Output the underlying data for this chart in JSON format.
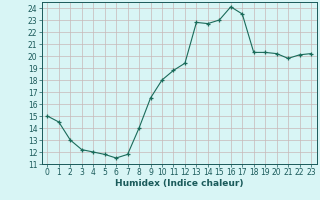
{
  "x": [
    0,
    1,
    2,
    3,
    4,
    5,
    6,
    7,
    8,
    9,
    10,
    11,
    12,
    13,
    14,
    15,
    16,
    17,
    18,
    19,
    20,
    21,
    22,
    23
  ],
  "y": [
    15.0,
    14.5,
    13.0,
    12.2,
    12.0,
    11.8,
    11.5,
    11.8,
    14.0,
    16.5,
    18.0,
    18.8,
    19.4,
    22.8,
    22.7,
    23.0,
    24.1,
    23.5,
    20.3,
    20.3,
    20.2,
    19.8,
    20.1,
    20.2
  ],
  "line_color": "#1a6b5a",
  "marker": "+",
  "marker_color": "#1a6b5a",
  "bg_color": "#d8f5f5",
  "grid_color": "#c8b8b8",
  "xlabel": "Humidex (Indice chaleur)",
  "xlim": [
    -0.5,
    23.5
  ],
  "ylim": [
    11,
    24.5
  ],
  "yticks": [
    11,
    12,
    13,
    14,
    15,
    16,
    17,
    18,
    19,
    20,
    21,
    22,
    23,
    24
  ],
  "xticks": [
    0,
    1,
    2,
    3,
    4,
    5,
    6,
    7,
    8,
    9,
    10,
    11,
    12,
    13,
    14,
    15,
    16,
    17,
    18,
    19,
    20,
    21,
    22,
    23
  ],
  "tick_fontsize": 5.5,
  "label_fontsize": 6.5,
  "tick_color": "#1a5a5a",
  "axis_color": "#1a5a5a"
}
